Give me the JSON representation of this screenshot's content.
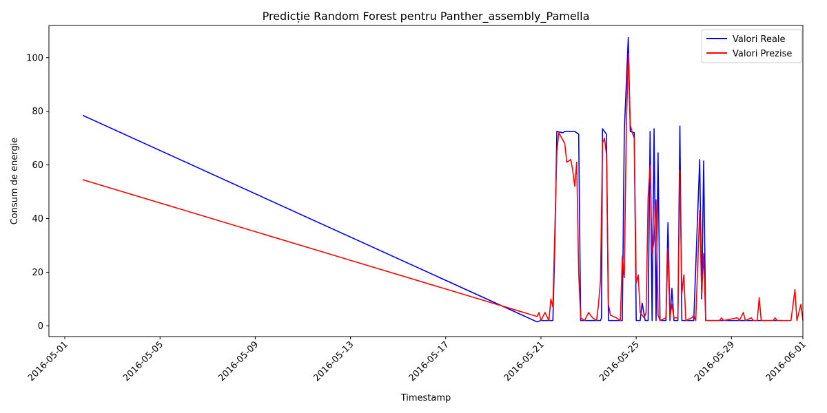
{
  "chart_data": {
    "type": "line",
    "title": "Predicție Random Forest pentru Panther_assembly_Pamella",
    "xlabel": "Timestamp",
    "ylabel": "Consum de energie",
    "xlim": [
      "2016-04-30T08:00",
      "2016-06-01T00:00"
    ],
    "ylim": [
      -4,
      112
    ],
    "x_ticks": [
      "2016-05-01",
      "2016-05-05",
      "2016-05-09",
      "2016-05-13",
      "2016-05-17",
      "2016-05-21",
      "2016-05-25",
      "2016-05-29",
      "2016-06-01"
    ],
    "y_ticks": [
      0,
      20,
      40,
      60,
      80,
      100
    ],
    "grid": false,
    "legend_position": "top-right",
    "series": [
      {
        "name": "Valori Reale",
        "color": "#0000ff",
        "points": [
          [
            "2016-05-01T18:00",
            78.5
          ],
          [
            "2016-05-20T20:00",
            1.5
          ],
          [
            "2016-05-21T00:00",
            2
          ],
          [
            "2016-05-21T12:00",
            2
          ],
          [
            "2016-05-21T14:00",
            30
          ],
          [
            "2016-05-21T16:00",
            72.5
          ],
          [
            "2016-05-21T22:00",
            72
          ],
          [
            "2016-05-22T00:00",
            72.5
          ],
          [
            "2016-05-22T10:00",
            72.5
          ],
          [
            "2016-05-22T14:00",
            71.5
          ],
          [
            "2016-05-22T16:00",
            2
          ],
          [
            "2016-05-23T00:00",
            2
          ],
          [
            "2016-05-23T12:00",
            2
          ],
          [
            "2016-05-23T13:00",
            3
          ],
          [
            "2016-05-23T14:00",
            73.5
          ],
          [
            "2016-05-23T18:00",
            71.5
          ],
          [
            "2016-05-23T20:00",
            2
          ],
          [
            "2016-05-24T10:00",
            2
          ],
          [
            "2016-05-24T12:00",
            72.5
          ],
          [
            "2016-05-24T16:00",
            107.5
          ],
          [
            "2016-05-24T18:00",
            72.5
          ],
          [
            "2016-05-24T22:00",
            72
          ],
          [
            "2016-05-25T00:00",
            2
          ],
          [
            "2016-05-25T04:00",
            2
          ],
          [
            "2016-05-25T06:00",
            8.5
          ],
          [
            "2016-05-25T09:00",
            2
          ],
          [
            "2016-05-25T12:00",
            2
          ],
          [
            "2016-05-25T14:00",
            72.5
          ],
          [
            "2016-05-25T16:00",
            2
          ],
          [
            "2016-05-25T18:00",
            73.5
          ],
          [
            "2016-05-25T20:00",
            2
          ],
          [
            "2016-05-25T22:00",
            64.5
          ],
          [
            "2016-05-26T00:00",
            2
          ],
          [
            "2016-05-26T06:00",
            2
          ],
          [
            "2016-05-26T08:00",
            38.5
          ],
          [
            "2016-05-26T10:00",
            2
          ],
          [
            "2016-05-26T12:00",
            14
          ],
          [
            "2016-05-26T14:00",
            2
          ],
          [
            "2016-05-26T18:00",
            2
          ],
          [
            "2016-05-26T20:00",
            74.5
          ],
          [
            "2016-05-26T22:00",
            2
          ],
          [
            "2016-05-27T10:00",
            2
          ],
          [
            "2016-05-27T16:00",
            62
          ],
          [
            "2016-05-27T18:00",
            10
          ],
          [
            "2016-05-27T20:00",
            61.5
          ],
          [
            "2016-05-27T22:00",
            2
          ],
          [
            "2016-05-28T12:00",
            2
          ],
          [
            "2016-05-29T12:00",
            2
          ],
          [
            "2016-05-30T12:00",
            2
          ],
          [
            "2016-05-31T01:00",
            2
          ],
          [
            "2016-05-31T04:00",
            2
          ]
        ]
      },
      {
        "name": "Valori Prezise",
        "color": "#ff0000",
        "points": [
          [
            "2016-05-01T18:00",
            54.5
          ],
          [
            "2016-05-20T20:00",
            3.5
          ],
          [
            "2016-05-20T22:00",
            5
          ],
          [
            "2016-05-21T00:00",
            2
          ],
          [
            "2016-05-21T04:00",
            5
          ],
          [
            "2016-05-21T08:00",
            2
          ],
          [
            "2016-05-21T10:00",
            10
          ],
          [
            "2016-05-21T12:00",
            7
          ],
          [
            "2016-05-21T16:00",
            65
          ],
          [
            "2016-05-21T18:00",
            72
          ],
          [
            "2016-05-22T00:00",
            68
          ],
          [
            "2016-05-22T02:00",
            61
          ],
          [
            "2016-05-22T06:00",
            62
          ],
          [
            "2016-05-22T08:00",
            58
          ],
          [
            "2016-05-22T10:00",
            52
          ],
          [
            "2016-05-22T12:00",
            61
          ],
          [
            "2016-05-22T14:00",
            20
          ],
          [
            "2016-05-22T16:00",
            3
          ],
          [
            "2016-05-22T20:00",
            2
          ],
          [
            "2016-05-23T00:00",
            5
          ],
          [
            "2016-05-23T04:00",
            3
          ],
          [
            "2016-05-23T08:00",
            2
          ],
          [
            "2016-05-23T10:00",
            8
          ],
          [
            "2016-05-23T12:00",
            17
          ],
          [
            "2016-05-23T14:00",
            68
          ],
          [
            "2016-05-23T16:00",
            70
          ],
          [
            "2016-05-23T18:00",
            64
          ],
          [
            "2016-05-23T20:00",
            8
          ],
          [
            "2016-05-23T22:00",
            4
          ],
          [
            "2016-05-24T04:00",
            3
          ],
          [
            "2016-05-24T08:00",
            2
          ],
          [
            "2016-05-24T10:00",
            26
          ],
          [
            "2016-05-24T12:00",
            18
          ],
          [
            "2016-05-24T14:00",
            73
          ],
          [
            "2016-05-24T16:00",
            101.5
          ],
          [
            "2016-05-24T18:00",
            75
          ],
          [
            "2016-05-24T20:00",
            72
          ],
          [
            "2016-05-24T22:00",
            70
          ],
          [
            "2016-05-25T00:00",
            16
          ],
          [
            "2016-05-25T02:00",
            19
          ],
          [
            "2016-05-25T04:00",
            5
          ],
          [
            "2016-05-25T08:00",
            3
          ],
          [
            "2016-05-25T10:00",
            5
          ],
          [
            "2016-05-25T12:00",
            48
          ],
          [
            "2016-05-25T14:00",
            60
          ],
          [
            "2016-05-25T16:00",
            27
          ],
          [
            "2016-05-25T18:00",
            32
          ],
          [
            "2016-05-25T20:00",
            47
          ],
          [
            "2016-05-25T22:00",
            4
          ],
          [
            "2016-05-26T00:00",
            2
          ],
          [
            "2016-05-26T06:00",
            3
          ],
          [
            "2016-05-26T08:00",
            29
          ],
          [
            "2016-05-26T10:00",
            3
          ],
          [
            "2016-05-26T12:00",
            8
          ],
          [
            "2016-05-26T14:00",
            3
          ],
          [
            "2016-05-26T18:00",
            3
          ],
          [
            "2016-05-26T20:00",
            58
          ],
          [
            "2016-05-26T22:00",
            12
          ],
          [
            "2016-05-27T00:00",
            19
          ],
          [
            "2016-05-27T02:00",
            2
          ],
          [
            "2016-05-27T08:00",
            3
          ],
          [
            "2016-05-27T10:00",
            4
          ],
          [
            "2016-05-27T12:00",
            2
          ],
          [
            "2016-05-27T16:00",
            43
          ],
          [
            "2016-05-27T18:00",
            12
          ],
          [
            "2016-05-27T20:00",
            27
          ],
          [
            "2016-05-27T22:00",
            2
          ],
          [
            "2016-05-28T12:00",
            2
          ],
          [
            "2016-05-28T14:00",
            3
          ],
          [
            "2016-05-28T16:00",
            2
          ],
          [
            "2016-05-29T06:00",
            3
          ],
          [
            "2016-05-29T08:00",
            2
          ],
          [
            "2016-05-29T12:00",
            5
          ],
          [
            "2016-05-29T14:00",
            2
          ],
          [
            "2016-05-29T20:00",
            3
          ],
          [
            "2016-05-29T22:00",
            2
          ],
          [
            "2016-05-30T02:00",
            2
          ],
          [
            "2016-05-30T04:00",
            10.5
          ],
          [
            "2016-05-30T06:00",
            2
          ],
          [
            "2016-05-30T18:00",
            2
          ],
          [
            "2016-05-30T20:00",
            3
          ],
          [
            "2016-05-30T22:00",
            2
          ],
          [
            "2016-05-31T12:00",
            2
          ],
          [
            "2016-05-31T16:00",
            13.5
          ],
          [
            "2016-05-31T18:00",
            2
          ],
          [
            "2016-05-31T22:00",
            8
          ],
          [
            "2016-06-01T00:00",
            2
          ]
        ]
      }
    ]
  }
}
